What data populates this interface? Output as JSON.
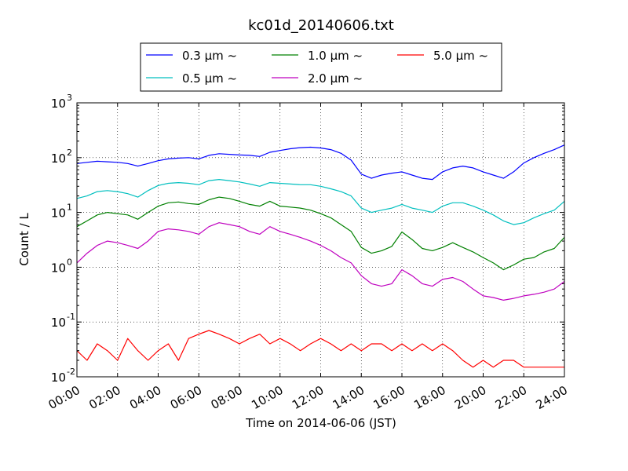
{
  "chart_data": {
    "type": "line",
    "title": "kc01d_20140606.txt",
    "xlabel": "Time on 2014-06-06 (JST)",
    "ylabel": "Count / L",
    "xlim": [
      0,
      24
    ],
    "ylim": [
      0.01,
      1000
    ],
    "yscale": "log",
    "grid": true,
    "legend_position": "top-center",
    "x_tick_labels": [
      "00:00",
      "02:00",
      "04:00",
      "06:00",
      "08:00",
      "10:00",
      "12:00",
      "14:00",
      "16:00",
      "18:00",
      "20:00",
      "22:00",
      "24:00"
    ],
    "y_tick_labels": [
      {
        "base": "10",
        "exp": "-2"
      },
      {
        "base": "10",
        "exp": "-1"
      },
      {
        "base": "10",
        "exp": "0"
      },
      {
        "base": "10",
        "exp": "1"
      },
      {
        "base": "10",
        "exp": "2"
      },
      {
        "base": "10",
        "exp": "3"
      }
    ],
    "x": [
      0,
      0.5,
      1,
      1.5,
      2,
      2.5,
      3,
      3.5,
      4,
      4.5,
      5,
      5.5,
      6,
      6.5,
      7,
      7.5,
      8,
      8.5,
      9,
      9.5,
      10,
      10.5,
      11,
      11.5,
      12,
      12.5,
      13,
      13.5,
      14,
      14.5,
      15,
      15.5,
      16,
      16.5,
      17,
      17.5,
      18,
      18.5,
      19,
      19.5,
      20,
      20.5,
      21,
      21.5,
      22,
      22.5,
      23,
      23.5,
      24
    ],
    "series": [
      {
        "name": "0.3 μm ~",
        "color": "#0000ff",
        "values": [
          78,
          82,
          86,
          84,
          82,
          78,
          70,
          78,
          88,
          95,
          98,
          100,
          95,
          110,
          118,
          115,
          112,
          110,
          105,
          125,
          135,
          145,
          152,
          155,
          150,
          140,
          120,
          90,
          50,
          42,
          48,
          52,
          55,
          48,
          42,
          40,
          55,
          65,
          70,
          65,
          55,
          48,
          42,
          55,
          80,
          100,
          120,
          140,
          170
        ]
      },
      {
        "name": "0.5 μm ~",
        "color": "#00bfbf",
        "values": [
          18,
          20,
          24,
          25,
          24,
          22,
          19,
          25,
          31,
          34,
          35,
          34,
          32,
          38,
          40,
          38,
          36,
          33,
          30,
          35,
          34,
          33,
          32,
          32,
          30,
          27,
          24,
          20,
          12,
          10,
          11,
          12,
          14,
          12,
          11,
          10,
          13,
          15,
          15,
          13,
          11,
          9,
          7,
          6,
          6.5,
          8,
          9.5,
          11,
          16
        ]
      },
      {
        "name": "1.0 μm ~",
        "color": "#008000",
        "values": [
          5.5,
          7,
          9,
          10,
          9.5,
          9,
          7.5,
          10,
          13,
          15,
          15.5,
          14.5,
          14,
          17,
          19,
          18,
          16,
          14,
          13,
          16,
          13,
          12.5,
          12,
          11,
          9.5,
          8,
          6,
          4.5,
          2.3,
          1.8,
          2,
          2.4,
          4.4,
          3.2,
          2.2,
          2,
          2.3,
          2.8,
          2.3,
          1.9,
          1.5,
          1.2,
          0.9,
          1.1,
          1.4,
          1.5,
          1.9,
          2.2,
          3.5
        ]
      },
      {
        "name": "2.0 μm ~",
        "color": "#bf00bf",
        "values": [
          1.2,
          1.8,
          2.5,
          3,
          2.8,
          2.5,
          2.2,
          3,
          4.5,
          5,
          4.8,
          4.5,
          4,
          5.5,
          6.5,
          6,
          5.5,
          4.5,
          4,
          5.5,
          4.5,
          4,
          3.5,
          3,
          2.5,
          2,
          1.5,
          1.2,
          0.7,
          0.5,
          0.45,
          0.5,
          0.9,
          0.7,
          0.5,
          0.45,
          0.6,
          0.65,
          0.55,
          0.4,
          0.3,
          0.28,
          0.25,
          0.27,
          0.3,
          0.32,
          0.35,
          0.4,
          0.55
        ]
      },
      {
        "name": "5.0 μm ~",
        "color": "#ff0000",
        "values": [
          0.03,
          0.02,
          0.04,
          0.03,
          0.02,
          0.05,
          0.03,
          0.02,
          0.03,
          0.04,
          0.02,
          0.05,
          0.06,
          0.07,
          0.06,
          0.05,
          0.04,
          0.05,
          0.06,
          0.04,
          0.05,
          0.04,
          0.03,
          0.04,
          0.05,
          0.04,
          0.03,
          0.04,
          0.03,
          0.04,
          0.04,
          0.03,
          0.04,
          0.03,
          0.04,
          0.03,
          0.04,
          0.03,
          0.02,
          0.015,
          0.02,
          0.015,
          0.02,
          0.02,
          0.015,
          0.015,
          0.015,
          0.015,
          0.015
        ]
      }
    ]
  }
}
